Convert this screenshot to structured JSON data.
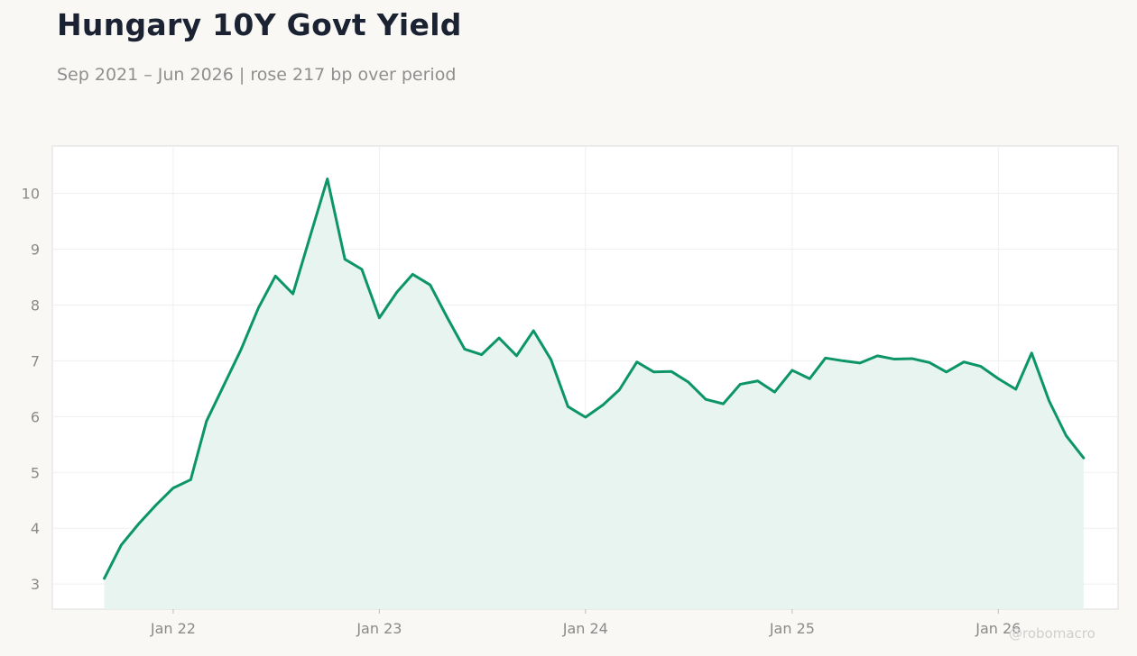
{
  "header": {
    "title": "Hungary 10Y Govt Yield",
    "subtitle": "Sep 2021 – Jun 2026 | rose 217 bp over period"
  },
  "watermark": "@robomacro",
  "colors": {
    "line": "#0c9566",
    "area": "#e8f4ef",
    "background": "#f9f8f5",
    "plot_background": "#ffffff",
    "grid": "#efefef"
  },
  "chart_data": {
    "type": "area",
    "title": "Hungary 10Y Govt Yield",
    "subtitle": "Sep 2021 – Jun 2026 | rose 217 bp over period",
    "xlabel": "",
    "ylabel": "",
    "grid": true,
    "legend": "none",
    "x_ticks": [
      {
        "date": "2022-01-01",
        "label": "Jan 22"
      },
      {
        "date": "2023-01-01",
        "label": "Jan 23"
      },
      {
        "date": "2024-01-01",
        "label": "Jan 24"
      },
      {
        "date": "2025-01-01",
        "label": "Jan 25"
      },
      {
        "date": "2026-01-01",
        "label": "Jan 26"
      }
    ],
    "y_ticks": [
      3,
      4,
      5,
      6,
      7,
      8,
      9,
      10
    ],
    "xlim": [
      "2021-06-01",
      "2026-08-01"
    ],
    "ylim": [
      2.55,
      10.85
    ],
    "series": [
      {
        "points": [
          [
            "2021-09",
            3.1
          ],
          [
            "2021-10",
            3.7
          ],
          [
            "2021-11",
            4.08
          ],
          [
            "2021-12",
            4.41
          ],
          [
            "2022-01",
            4.72
          ],
          [
            "2022-02",
            4.87
          ],
          [
            "2022-03",
            5.92
          ],
          [
            "2022-04",
            6.57
          ],
          [
            "2022-05",
            7.2
          ],
          [
            "2022-06",
            7.95
          ],
          [
            "2022-07",
            8.52
          ],
          [
            "2022-08",
            8.2
          ],
          [
            "2022-09",
            9.25
          ],
          [
            "2022-10",
            10.26
          ],
          [
            "2022-11",
            8.82
          ],
          [
            "2022-12",
            8.64
          ],
          [
            "2023-01",
            7.77
          ],
          [
            "2023-02",
            8.23
          ],
          [
            "2023-03",
            8.55
          ],
          [
            "2023-04",
            8.36
          ],
          [
            "2023-05",
            7.78
          ],
          [
            "2023-06",
            7.21
          ],
          [
            "2023-07",
            7.11
          ],
          [
            "2023-08",
            7.41
          ],
          [
            "2023-09",
            7.09
          ],
          [
            "2023-10",
            7.54
          ],
          [
            "2023-11",
            7.02
          ],
          [
            "2023-12",
            6.18
          ],
          [
            "2024-01",
            5.99
          ],
          [
            "2024-02",
            6.21
          ],
          [
            "2024-03",
            6.48
          ],
          [
            "2024-04",
            6.98
          ],
          [
            "2024-05",
            6.8
          ],
          [
            "2024-06",
            6.81
          ],
          [
            "2024-07",
            6.62
          ],
          [
            "2024-08",
            6.31
          ],
          [
            "2024-09",
            6.23
          ],
          [
            "2024-10",
            6.58
          ],
          [
            "2024-11",
            6.64
          ],
          [
            "2024-12",
            6.44
          ],
          [
            "2025-01",
            6.83
          ],
          [
            "2025-02",
            6.68
          ],
          [
            "2025-03",
            7.05
          ],
          [
            "2025-04",
            7.0
          ],
          [
            "2025-05",
            6.96
          ],
          [
            "2025-06",
            7.09
          ],
          [
            "2025-07",
            7.03
          ],
          [
            "2025-08",
            7.04
          ],
          [
            "2025-09",
            6.97
          ],
          [
            "2025-10",
            6.8
          ],
          [
            "2025-11",
            6.98
          ],
          [
            "2025-12",
            6.9
          ],
          [
            "2026-01",
            6.68
          ],
          [
            "2026-02",
            6.49
          ],
          [
            "2026-03",
            7.14
          ],
          [
            "2026-04",
            6.28
          ],
          [
            "2026-05",
            5.66
          ],
          [
            "2026-06",
            5.26
          ]
        ]
      }
    ]
  }
}
